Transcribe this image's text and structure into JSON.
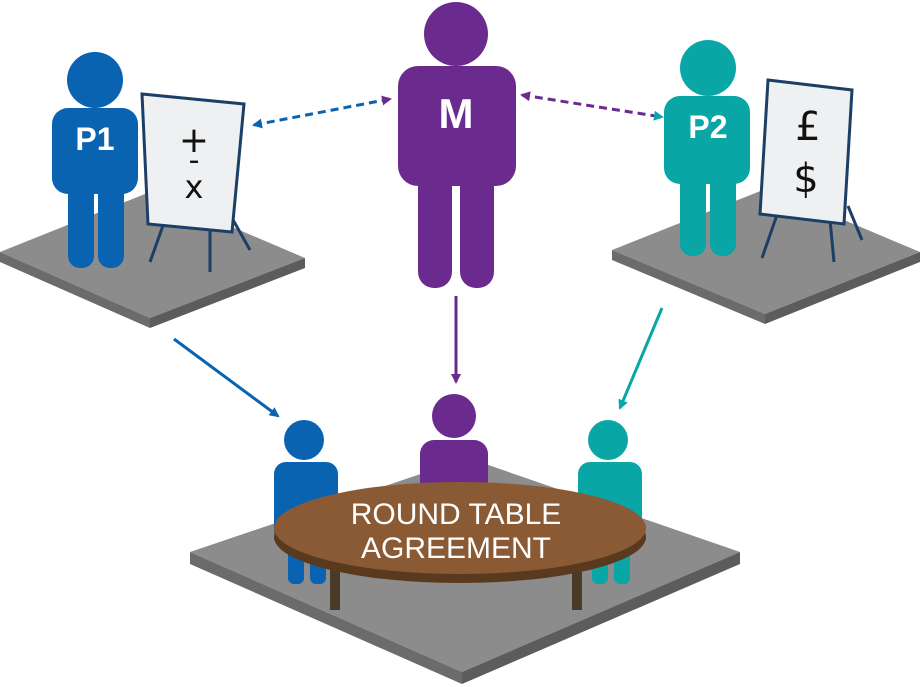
{
  "participants": {
    "p1": {
      "label": "P1",
      "color": "#0a63b0"
    },
    "mediator": {
      "label": "M",
      "color": "#6b2b8e"
    },
    "p2": {
      "label": "P2",
      "color": "#0aa6a6"
    }
  },
  "boards": {
    "p1_symbols": {
      "line1": "+",
      "line2": "-",
      "line3": "x"
    },
    "p2_symbols": {
      "line1": "£",
      "line2": "$"
    }
  },
  "table": {
    "line1": "ROUND TABLE",
    "line2": "AGREEMENT",
    "color": "#8a5a34"
  },
  "colors": {
    "platform_top": "#8c8c8c",
    "platform_side": "#6e6e6e",
    "board_fill": "#eef0f1",
    "board_stroke": "#1c3f66"
  }
}
